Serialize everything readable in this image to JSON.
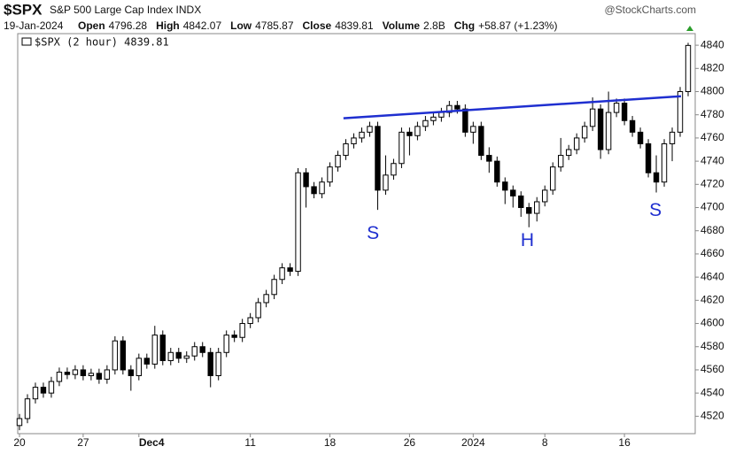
{
  "chart_data": {
    "type": "candlestick",
    "title": "$SPX",
    "subtitle": "S&P 500 Large Cap Index INDX",
    "source": "@StockCharts.com",
    "date": "19-Jan-2024",
    "stats": [
      {
        "label": "Open",
        "value": "4796.28"
      },
      {
        "label": "High",
        "value": "4842.07"
      },
      {
        "label": "Low",
        "value": "4785.87"
      },
      {
        "label": "Close",
        "value": "4839.81"
      },
      {
        "label": "Volume",
        "value": "2.8B"
      },
      {
        "label": "Chg",
        "value": "+58.87 (+1.23%)"
      }
    ],
    "legend": "$SPX (2 hour) 4839.81",
    "categories": [
      "20",
      null,
      null,
      null,
      null,
      null,
      null,
      null,
      "27",
      null,
      null,
      null,
      null,
      null,
      null,
      "Dec4",
      null,
      null,
      null,
      null,
      null,
      null,
      null,
      null,
      null,
      null,
      null,
      null,
      null,
      "11",
      null,
      null,
      null,
      null,
      null,
      null,
      null,
      null,
      null,
      "18",
      null,
      null,
      null,
      null,
      null,
      null,
      null,
      null,
      null,
      "26",
      null,
      null,
      null,
      null,
      null,
      null,
      null,
      "2024",
      null,
      null,
      null,
      null,
      null,
      null,
      null,
      null,
      "8",
      null,
      null,
      null,
      null,
      null,
      null,
      null,
      null,
      null,
      "16",
      null,
      null,
      null,
      null,
      null,
      null,
      null,
      null
    ],
    "open": [
      4512,
      4518,
      4535,
      4545,
      4540,
      4550,
      4558,
      4556,
      4560,
      4555,
      4557,
      4552,
      4560,
      4585,
      4560,
      4555,
      4570,
      4565,
      4590,
      4568,
      4575,
      4570,
      4572,
      4580,
      4575,
      4555,
      4575,
      4590,
      4588,
      4600,
      4605,
      4618,
      4625,
      4638,
      4648,
      4645,
      4730,
      4718,
      4712,
      4722,
      4735,
      4745,
      4755,
      4760,
      4765,
      4770,
      4715,
      4728,
      4738,
      4765,
      4762,
      4770,
      4775,
      4778,
      4782,
      4788,
      4785,
      4765,
      4770,
      4745,
      4740,
      4722,
      4715,
      4710,
      4700,
      4695,
      4705,
      4715,
      4735,
      4745,
      4750,
      4760,
      4770,
      4785,
      4750,
      4782,
      4790,
      4775,
      4765,
      4755,
      4730,
      4722,
      4755,
      4765,
      4800
    ],
    "high": [
      4522,
      4539,
      4549,
      4549,
      4554,
      4562,
      4562,
      4564,
      4564,
      4561,
      4561,
      4564,
      4589,
      4589,
      4564,
      4574,
      4574,
      4598,
      4594,
      4579,
      4579,
      4576,
      4584,
      4584,
      4579,
      4579,
      4594,
      4594,
      4604,
      4609,
      4622,
      4629,
      4642,
      4652,
      4652,
      4734,
      4734,
      4722,
      4726,
      4739,
      4749,
      4759,
      4764,
      4769,
      4774,
      4774,
      4745,
      4742,
      4769,
      4769,
      4774,
      4779,
      4782,
      4786,
      4792,
      4792,
      4789,
      4774,
      4774,
      4752,
      4744,
      4726,
      4719,
      4714,
      4704,
      4709,
      4719,
      4739,
      4760,
      4754,
      4764,
      4774,
      4795,
      4789,
      4800,
      4794,
      4794,
      4779,
      4769,
      4759,
      4745,
      4759,
      4769,
      4804,
      4842.07
    ],
    "low": [
      4508,
      4514,
      4531,
      4536,
      4536,
      4546,
      4552,
      4552,
      4551,
      4551,
      4548,
      4548,
      4556,
      4556,
      4542,
      4551,
      4561,
      4561,
      4564,
      4564,
      4566,
      4566,
      4568,
      4571,
      4545,
      4551,
      4571,
      4584,
      4584,
      4596,
      4601,
      4614,
      4621,
      4634,
      4641,
      4641,
      4700,
      4708,
      4708,
      4718,
      4731,
      4741,
      4751,
      4756,
      4761,
      4698,
      4711,
      4724,
      4734,
      4745,
      4758,
      4766,
      4771,
      4774,
      4778,
      4781,
      4761,
      4755,
      4741,
      4730,
      4718,
      4703,
      4700,
      4692,
      4683,
      4688,
      4701,
      4711,
      4731,
      4741,
      4746,
      4756,
      4766,
      4742,
      4746,
      4778,
      4771,
      4761,
      4751,
      4726,
      4713,
      4718,
      4740,
      4761,
      4796
    ],
    "close": [
      4518,
      4535,
      4545,
      4540,
      4550,
      4558,
      4556,
      4560,
      4555,
      4557,
      4552,
      4560,
      4585,
      4560,
      4555,
      4570,
      4565,
      4590,
      4568,
      4575,
      4570,
      4572,
      4580,
      4575,
      4555,
      4575,
      4590,
      4588,
      4600,
      4605,
      4618,
      4625,
      4638,
      4648,
      4645,
      4730,
      4718,
      4712,
      4722,
      4735,
      4745,
      4755,
      4760,
      4765,
      4770,
      4715,
      4728,
      4738,
      4765,
      4762,
      4770,
      4775,
      4778,
      4782,
      4788,
      4785,
      4765,
      4770,
      4745,
      4740,
      4722,
      4715,
      4710,
      4700,
      4695,
      4705,
      4715,
      4735,
      4745,
      4750,
      4760,
      4770,
      4785,
      4750,
      4782,
      4790,
      4775,
      4765,
      4755,
      4730,
      4722,
      4755,
      4765,
      4800,
      4839.81
    ],
    "up_color": "#ffffff",
    "down_color": "#000000",
    "ylim": [
      4505,
      4850
    ],
    "yticks": [
      4520,
      4540,
      4560,
      4580,
      4600,
      4620,
      4640,
      4660,
      4680,
      4700,
      4720,
      4740,
      4760,
      4780,
      4800,
      4820,
      4840
    ],
    "trendline": {
      "start": [
        40.7,
        4777
      ],
      "end": [
        83.1,
        4796
      ],
      "color": "#1f2fd0"
    },
    "annotations": [
      {
        "text": "S",
        "x": 44.4,
        "y": 4677
      },
      {
        "text": "H",
        "x": 63.8,
        "y": 4671
      },
      {
        "text": "S",
        "x": 79.9,
        "y": 4697
      }
    ],
    "annotation_color": "#1f2fd0"
  }
}
